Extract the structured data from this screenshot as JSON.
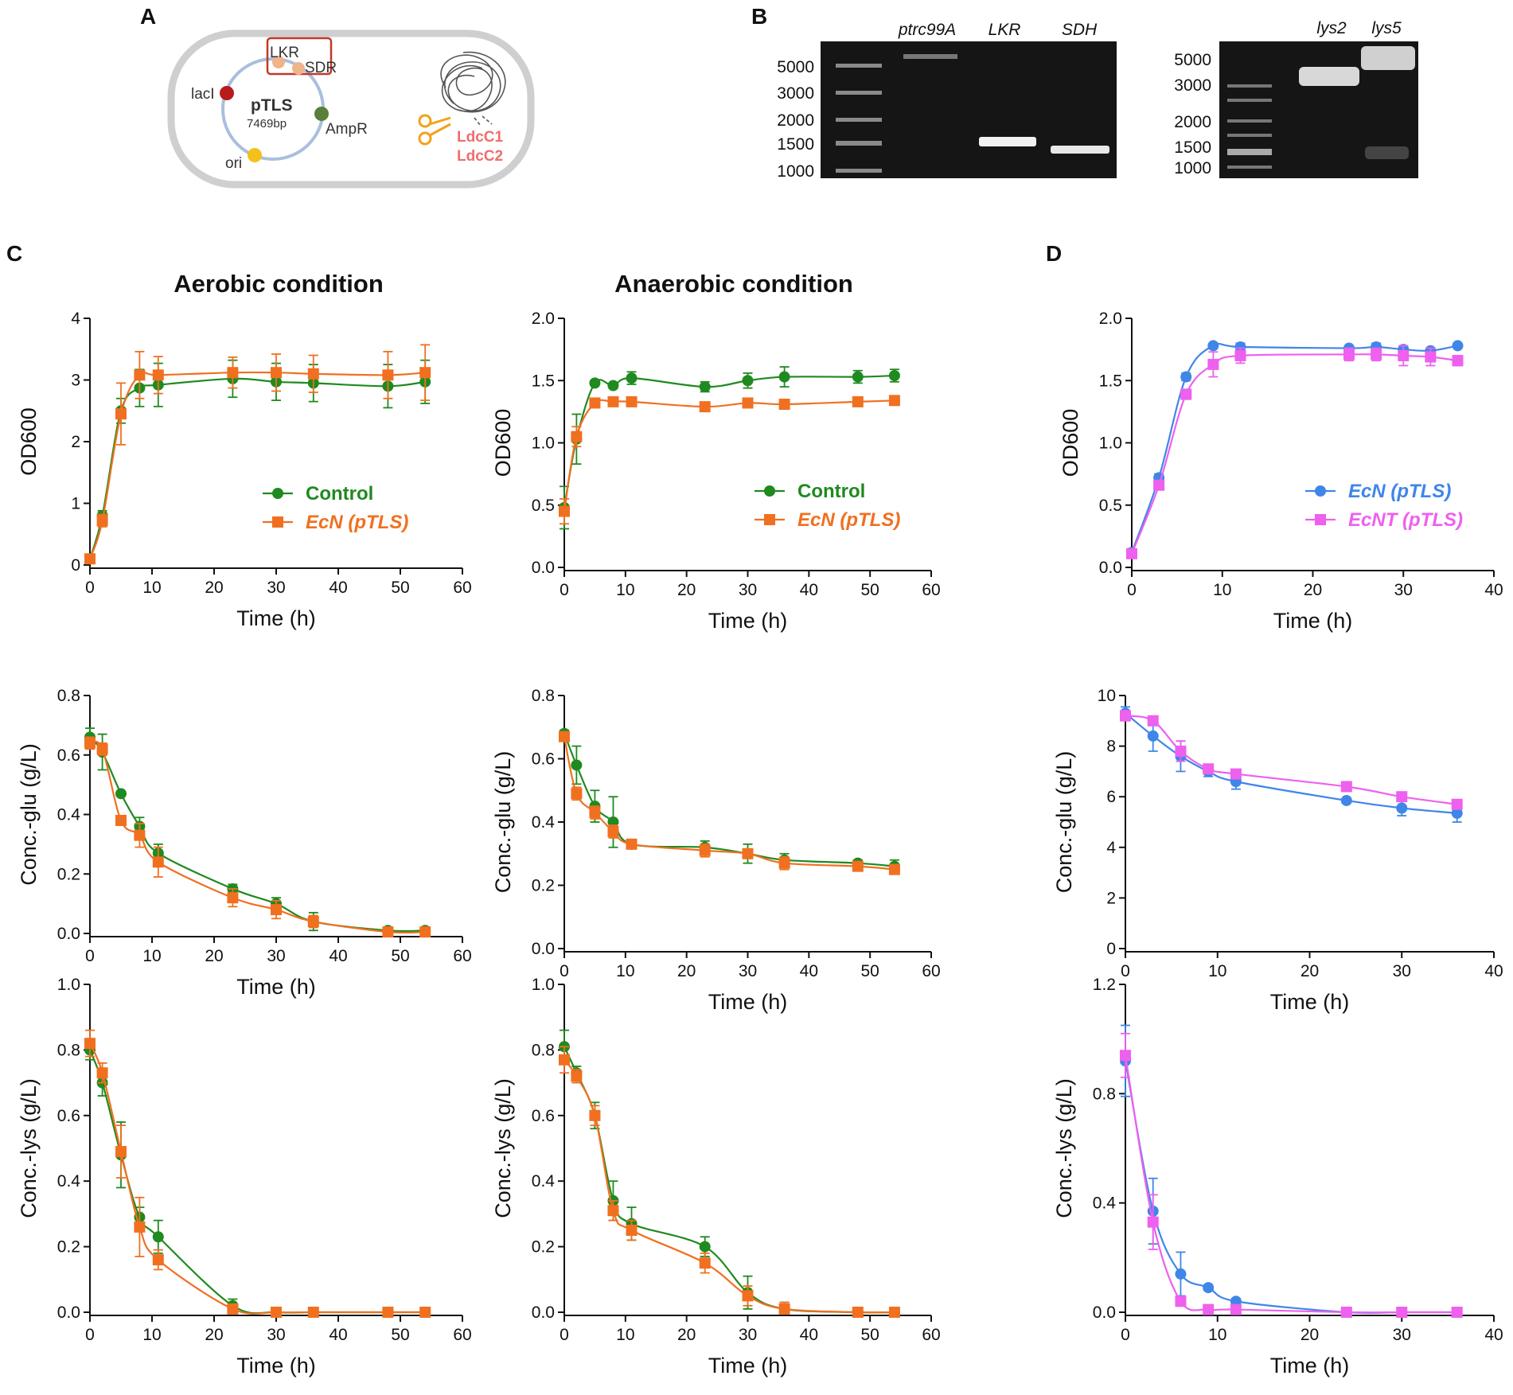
{
  "panel_letters": {
    "A": "A",
    "B": "B",
    "C": "C",
    "D": "D"
  },
  "colors": {
    "control": "#1f8a1f",
    "ecn_orange": "#f07020",
    "ecn_blue": "#3f86e8",
    "ecnt_magenta": "#ee60ee",
    "cell_outline": "#cfcfcf",
    "plasmid": "#a9bfdc",
    "gel": "#111111"
  },
  "panelA": {
    "plasmid_name": "pTLS",
    "plasmid_size": "7469bp",
    "genes": [
      "LKR",
      "SDR",
      "lacI",
      "AmpR",
      "ori"
    ],
    "knockouts": [
      "LdcC1",
      "LdcC2"
    ]
  },
  "panelB": {
    "gel1": {
      "ladder": [
        "5000",
        "3000",
        "2000",
        "1500",
        "1000"
      ],
      "lanes": [
        "ptrc99A",
        "LKR",
        "SDH"
      ]
    },
    "gel2": {
      "ladder": [
        "5000",
        "3000",
        "2000",
        "1500",
        "1000"
      ],
      "lanes": [
        "lys2",
        "lys5"
      ]
    }
  },
  "column_titles": {
    "aerobic": "Aerobic condition",
    "anaerobic": "Anaerobic condition"
  },
  "chart_data": [
    {
      "id": "c_aer_od",
      "type": "line",
      "panel": "C",
      "condition": "Aerobic condition",
      "xlabel": "Time (h)",
      "ylabel": "OD600",
      "xlim": [
        0,
        60
      ],
      "ylim": [
        0,
        4
      ],
      "xticks": [
        "0",
        "10",
        "20",
        "30",
        "40",
        "50",
        "60"
      ],
      "yticks": [
        "0",
        "1",
        "2",
        "3",
        "4"
      ],
      "legend": {
        "placement": "right-middle"
      },
      "series": [
        {
          "name": "Control",
          "color_key": "control",
          "marker": "circle",
          "x": [
            0,
            2,
            5,
            8,
            11,
            23,
            30,
            36,
            48,
            54
          ],
          "y": [
            0.1,
            0.8,
            2.5,
            2.87,
            2.92,
            3.02,
            2.97,
            2.95,
            2.9,
            2.97
          ],
          "err": [
            0.05,
            0.08,
            0.2,
            0.3,
            0.35,
            0.3,
            0.3,
            0.3,
            0.35,
            0.35
          ]
        },
        {
          "name": "EcN (pTLS)",
          "color_key": "ecn_orange",
          "marker": "square",
          "italic": true,
          "x": [
            0,
            2,
            5,
            8,
            11,
            23,
            30,
            36,
            48,
            54
          ],
          "y": [
            0.1,
            0.72,
            2.45,
            3.08,
            3.08,
            3.12,
            3.12,
            3.1,
            3.08,
            3.12
          ],
          "err": [
            0.05,
            0.1,
            0.5,
            0.38,
            0.3,
            0.25,
            0.3,
            0.3,
            0.38,
            0.45
          ]
        }
      ]
    },
    {
      "id": "c_ana_od",
      "type": "line",
      "panel": "C",
      "condition": "Anaerobic condition",
      "xlabel": "Time (h)",
      "ylabel": "OD600",
      "xlim": [
        0,
        60
      ],
      "ylim": [
        0,
        2
      ],
      "xticks": [
        "0",
        "10",
        "20",
        "30",
        "40",
        "50",
        "60"
      ],
      "yticks": [
        "0.0",
        "0.5",
        "1.0",
        "1.5",
        "2.0"
      ],
      "legend": {
        "placement": "right-middle"
      },
      "series": [
        {
          "name": "Control",
          "color_key": "control",
          "marker": "circle",
          "x": [
            0,
            2,
            5,
            8,
            11,
            23,
            30,
            36,
            48,
            54
          ],
          "y": [
            0.48,
            1.03,
            1.48,
            1.46,
            1.52,
            1.45,
            1.5,
            1.53,
            1.53,
            1.54
          ],
          "err": [
            0.17,
            0.2,
            0.02,
            0.02,
            0.05,
            0.04,
            0.06,
            0.08,
            0.05,
            0.05
          ]
        },
        {
          "name": "EcN (pTLS)",
          "color_key": "ecn_orange",
          "marker": "square",
          "italic": true,
          "x": [
            0,
            2,
            5,
            8,
            11,
            23,
            30,
            36,
            48,
            54
          ],
          "y": [
            0.45,
            1.05,
            1.32,
            1.33,
            1.33,
            1.29,
            1.32,
            1.31,
            1.33,
            1.34
          ],
          "err": [
            0.1,
            0.08,
            0.02,
            0.02,
            0.02,
            0.02,
            0.02,
            0.02,
            0.02,
            0.02
          ]
        }
      ]
    },
    {
      "id": "d_od",
      "type": "line",
      "panel": "D",
      "condition": "",
      "xlabel": "Time (h)",
      "ylabel": "OD600",
      "xlim": [
        0,
        40
      ],
      "ylim": [
        0,
        2
      ],
      "xticks": [
        "0",
        "10",
        "20",
        "30",
        "40"
      ],
      "yticks": [
        "0.0",
        "0.5",
        "1.0",
        "1.5",
        "2.0"
      ],
      "legend": {
        "placement": "right-middle"
      },
      "series": [
        {
          "name": "EcN (pTLS)",
          "color_key": "ecn_blue",
          "marker": "circle",
          "italic": true,
          "x": [
            0,
            3,
            6,
            9,
            12,
            24,
            27,
            30,
            33,
            36
          ],
          "y": [
            0.12,
            0.72,
            1.53,
            1.78,
            1.77,
            1.76,
            1.77,
            1.75,
            1.74,
            1.78
          ],
          "err": [
            0.01,
            0.03,
            0.03,
            0.02,
            0.03,
            0.02,
            0.03,
            0.03,
            0.02,
            0.02
          ]
        },
        {
          "name": "EcNT (pTLS)",
          "color_key": "ecnt_magenta",
          "marker": "square",
          "italic": true,
          "x": [
            0,
            3,
            6,
            9,
            12,
            24,
            27,
            30,
            33,
            36
          ],
          "y": [
            0.11,
            0.66,
            1.39,
            1.63,
            1.7,
            1.71,
            1.71,
            1.7,
            1.69,
            1.66
          ],
          "err": [
            0.01,
            0.03,
            0.04,
            0.1,
            0.06,
            0.05,
            0.05,
            0.08,
            0.07,
            0.04
          ]
        }
      ]
    },
    {
      "id": "c_aer_glu",
      "type": "line",
      "panel": "C",
      "condition": "Aerobic condition",
      "xlabel": "Time (h)",
      "ylabel": "Conc.-glu (g/L)",
      "xlim": [
        0,
        60
      ],
      "ylim": [
        0,
        0.8
      ],
      "xticks": [
        "0",
        "10",
        "20",
        "30",
        "40",
        "50",
        "60"
      ],
      "yticks": [
        "0.0",
        "0.2",
        "0.4",
        "0.6",
        "0.8"
      ],
      "series": [
        {
          "name": "Control",
          "color_key": "control",
          "marker": "circle",
          "x": [
            0,
            2,
            5,
            8,
            11,
            23,
            30,
            36,
            48,
            54
          ],
          "y": [
            0.66,
            0.61,
            0.47,
            0.36,
            0.27,
            0.15,
            0.1,
            0.04,
            0.01,
            0.01
          ],
          "err": [
            0.03,
            0.06,
            0.0,
            0.03,
            0.03,
            0.015,
            0.02,
            0.03,
            0.01,
            0.01
          ]
        },
        {
          "name": "EcN (pTLS)",
          "color_key": "ecn_orange",
          "marker": "square",
          "italic": true,
          "x": [
            0,
            2,
            5,
            8,
            11,
            23,
            30,
            36,
            48,
            54
          ],
          "y": [
            0.64,
            0.62,
            0.38,
            0.33,
            0.24,
            0.12,
            0.08,
            0.04,
            0.005,
            0.005
          ],
          "err": [
            0.02,
            0.02,
            0.0,
            0.04,
            0.05,
            0.03,
            0.03,
            0.02,
            0.01,
            0.01
          ]
        }
      ]
    },
    {
      "id": "c_ana_glu",
      "type": "line",
      "panel": "C",
      "condition": "Anaerobic condition",
      "xlabel": "Time (h)",
      "ylabel": "Conc.-glu (g/L)",
      "xlim": [
        0,
        60
      ],
      "ylim": [
        0,
        0.8
      ],
      "xticks": [
        "0",
        "10",
        "20",
        "30",
        "40",
        "50",
        "60"
      ],
      "yticks": [
        "0.0",
        "0.2",
        "0.4",
        "0.6",
        "0.8"
      ],
      "series": [
        {
          "name": "Control",
          "color_key": "control",
          "marker": "circle",
          "x": [
            0,
            2,
            5,
            8,
            11,
            23,
            30,
            36,
            48,
            54
          ],
          "y": [
            0.68,
            0.58,
            0.45,
            0.4,
            0.33,
            0.32,
            0.3,
            0.28,
            0.27,
            0.26
          ],
          "err": [
            0.01,
            0.06,
            0.05,
            0.08,
            0.01,
            0.02,
            0.03,
            0.02,
            0.01,
            0.02
          ]
        },
        {
          "name": "EcN (pTLS)",
          "color_key": "ecn_orange",
          "marker": "square",
          "italic": true,
          "x": [
            0,
            2,
            5,
            8,
            11,
            23,
            30,
            36,
            48,
            54
          ],
          "y": [
            0.67,
            0.49,
            0.43,
            0.37,
            0.33,
            0.31,
            0.3,
            0.27,
            0.26,
            0.25
          ],
          "err": [
            0.01,
            0.02,
            0.02,
            0.02,
            0.01,
            0.02,
            0.01,
            0.02,
            0.01,
            0.01
          ]
        }
      ]
    },
    {
      "id": "d_glu",
      "type": "line",
      "panel": "D",
      "condition": "",
      "xlabel": "Time (h)",
      "ylabel": "Conc.-glu (g/L)",
      "xlim": [
        0,
        40
      ],
      "ylim": [
        0,
        10
      ],
      "xticks": [
        "0",
        "10",
        "20",
        "30",
        "40"
      ],
      "yticks": [
        "0",
        "2",
        "4",
        "6",
        "8",
        "10"
      ],
      "series": [
        {
          "name": "EcN (pTLS)",
          "color_key": "ecn_blue",
          "marker": "circle",
          "italic": true,
          "x": [
            0,
            3,
            6,
            9,
            12,
            24,
            30,
            36
          ],
          "y": [
            9.3,
            8.4,
            7.6,
            7.0,
            6.6,
            5.85,
            5.55,
            5.35
          ],
          "err": [
            0.25,
            0.6,
            0.6,
            0.2,
            0.3,
            0.1,
            0.3,
            0.35
          ]
        },
        {
          "name": "EcNT (pTLS)",
          "color_key": "ecnt_magenta",
          "marker": "square",
          "italic": true,
          "x": [
            0,
            3,
            6,
            9,
            12,
            24,
            30,
            36
          ],
          "y": [
            9.2,
            9.0,
            7.8,
            7.1,
            6.9,
            6.4,
            6.0,
            5.7
          ],
          "err": [
            0.2,
            0.1,
            0.4,
            0.1,
            0.15,
            0.1,
            0.1,
            0.1
          ]
        }
      ]
    },
    {
      "id": "c_aer_lys",
      "type": "line",
      "panel": "C",
      "condition": "Aerobic condition",
      "xlabel": "Time (h)",
      "ylabel": "Conc.-lys (g/L)",
      "xlim": [
        0,
        60
      ],
      "ylim": [
        0,
        1
      ],
      "xticks": [
        "0",
        "10",
        "20",
        "30",
        "40",
        "50",
        "60"
      ],
      "yticks": [
        "0.0",
        "0.2",
        "0.4",
        "0.6",
        "0.8",
        "1.0"
      ],
      "series": [
        {
          "name": "Control",
          "color_key": "control",
          "marker": "circle",
          "x": [
            0,
            2,
            5,
            8,
            11,
            23,
            30,
            36,
            48,
            54
          ],
          "y": [
            0.8,
            0.7,
            0.48,
            0.29,
            0.23,
            0.02,
            0.0,
            0.0,
            0.0,
            0.0
          ],
          "err": [
            0.03,
            0.04,
            0.1,
            0.03,
            0.05,
            0.02,
            0.01,
            0.01,
            0.01,
            0.01
          ]
        },
        {
          "name": "EcN (pTLS)",
          "color_key": "ecn_orange",
          "marker": "square",
          "italic": true,
          "x": [
            0,
            2,
            5,
            8,
            11,
            23,
            30,
            36,
            48,
            54
          ],
          "y": [
            0.82,
            0.73,
            0.49,
            0.26,
            0.16,
            0.01,
            0.0,
            0.0,
            0.0,
            0.0
          ],
          "err": [
            0.04,
            0.03,
            0.08,
            0.09,
            0.03,
            0.01,
            0.01,
            0.01,
            0.01,
            0.01
          ]
        }
      ]
    },
    {
      "id": "c_ana_lys",
      "type": "line",
      "panel": "C",
      "condition": "Anaerobic condition",
      "xlabel": "Time (h)",
      "ylabel": "Conc.-lys (g/L)",
      "xlim": [
        0,
        60
      ],
      "ylim": [
        0,
        1
      ],
      "xticks": [
        "0",
        "10",
        "20",
        "30",
        "40",
        "50",
        "60"
      ],
      "yticks": [
        "0.0",
        "0.2",
        "0.4",
        "0.6",
        "0.8",
        "1.0"
      ],
      "series": [
        {
          "name": "Control",
          "color_key": "control",
          "marker": "circle",
          "x": [
            0,
            2,
            5,
            8,
            11,
            23,
            30,
            36,
            48,
            54
          ],
          "y": [
            0.81,
            0.73,
            0.6,
            0.34,
            0.27,
            0.2,
            0.06,
            0.01,
            0.0,
            0.0
          ],
          "err": [
            0.05,
            0.02,
            0.04,
            0.06,
            0.05,
            0.03,
            0.05,
            0.02,
            0.01,
            0.01
          ]
        },
        {
          "name": "EcN (pTLS)",
          "color_key": "ecn_orange",
          "marker": "square",
          "italic": true,
          "x": [
            0,
            2,
            5,
            8,
            11,
            23,
            30,
            36,
            48,
            54
          ],
          "y": [
            0.77,
            0.72,
            0.6,
            0.31,
            0.25,
            0.15,
            0.05,
            0.01,
            0.0,
            0.0
          ],
          "err": [
            0.04,
            0.02,
            0.03,
            0.03,
            0.03,
            0.03,
            0.03,
            0.02,
            0.01,
            0.01
          ]
        }
      ]
    },
    {
      "id": "d_lys",
      "type": "line",
      "panel": "D",
      "condition": "",
      "xlabel": "Time (h)",
      "ylabel": "Conc.-lys (g/L)",
      "xlim": [
        0,
        40
      ],
      "ylim": [
        0,
        1.2
      ],
      "xticks": [
        "0",
        "10",
        "20",
        "30",
        "40"
      ],
      "yticks": [
        "0.0",
        "0.4",
        "0.8",
        "1.2"
      ],
      "series": [
        {
          "name": "EcN (pTLS)",
          "color_key": "ecn_blue",
          "marker": "circle",
          "italic": true,
          "x": [
            0,
            3,
            6,
            9,
            12,
            24,
            30,
            36
          ],
          "y": [
            0.92,
            0.37,
            0.14,
            0.09,
            0.04,
            0.0,
            0.0,
            0.0
          ],
          "err": [
            0.13,
            0.12,
            0.08,
            0.01,
            0.01,
            0.01,
            0.01,
            0.01
          ]
        },
        {
          "name": "EcNT (pTLS)",
          "color_key": "ecnt_magenta",
          "marker": "square",
          "italic": true,
          "x": [
            0,
            3,
            6,
            9,
            12,
            24,
            30,
            36
          ],
          "y": [
            0.94,
            0.33,
            0.04,
            0.01,
            0.01,
            0.0,
            0.0,
            0.0
          ],
          "err": [
            0.08,
            0.1,
            0.01,
            0.01,
            0.01,
            0.01,
            0.01,
            0.01
          ]
        }
      ]
    }
  ]
}
